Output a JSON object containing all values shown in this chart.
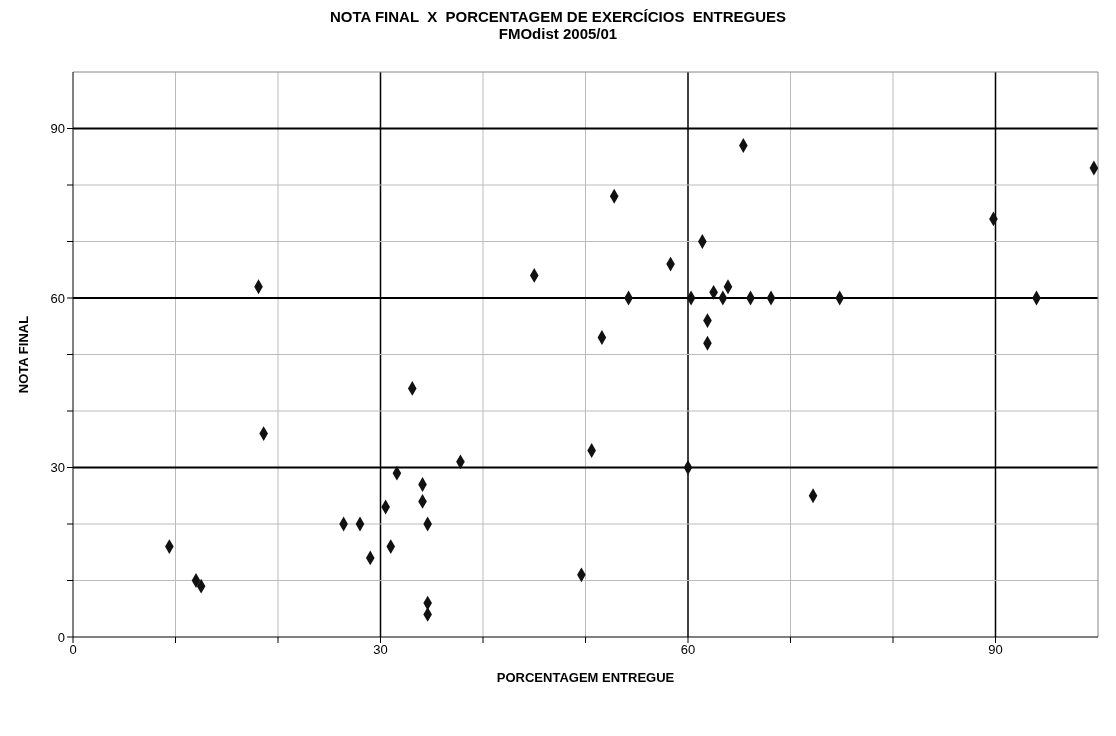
{
  "chart_data": {
    "type": "scatter",
    "title": "NOTA FINAL  X  PORCENTAGEM DE EXERCÍCIOS  ENTREGUES",
    "subtitle": "FMOdist 2005/01",
    "xlabel": "PORCENTAGEM  ENTREGUE",
    "ylabel": "NOTA FINAL",
    "x": [
      9.4,
      12.0,
      12.5,
      18.1,
      18.6,
      26.4,
      28.0,
      29.0,
      30.5,
      31.0,
      31.6,
      33.1,
      34.1,
      34.1,
      34.6,
      34.6,
      34.6,
      37.8,
      45.0,
      49.6,
      50.6,
      51.6,
      52.8,
      54.2,
      58.3,
      60.0,
      60.3,
      61.4,
      61.9,
      61.9,
      62.5,
      63.4,
      63.9,
      65.4,
      66.1,
      68.1,
      72.2,
      74.8,
      89.8,
      94.0,
      99.6
    ],
    "values": [
      16,
      10,
      9,
      62,
      36,
      20,
      20,
      14,
      23,
      16,
      29,
      44,
      27,
      24,
      20,
      6,
      4,
      31,
      64,
      11,
      33,
      53,
      78,
      60,
      66,
      30,
      60,
      70,
      56,
      52,
      61,
      60,
      62,
      87,
      60,
      60,
      25,
      60,
      74,
      60,
      83
    ],
    "color": "#111111",
    "marker": "diamond",
    "xlim": [
      0,
      100
    ],
    "ylim": [
      0,
      100
    ],
    "xticks": [
      0,
      {
        "value": 10,
        "label": null
      },
      {
        "value": 20,
        "label": null
      },
      30,
      {
        "value": 40,
        "label": null
      },
      {
        "value": 50,
        "label": null
      },
      60,
      {
        "value": 70,
        "label": null
      },
      {
        "value": 80,
        "label": null
      },
      90
    ],
    "yticks": [
      0,
      {
        "value": 10,
        "label": null
      },
      {
        "value": 20,
        "label": null
      },
      30,
      {
        "value": 40,
        "label": null
      },
      {
        "value": 50,
        "label": null
      },
      60,
      {
        "value": 70,
        "label": null
      },
      {
        "value": 80,
        "label": null
      },
      90
    ],
    "grid": true
  }
}
